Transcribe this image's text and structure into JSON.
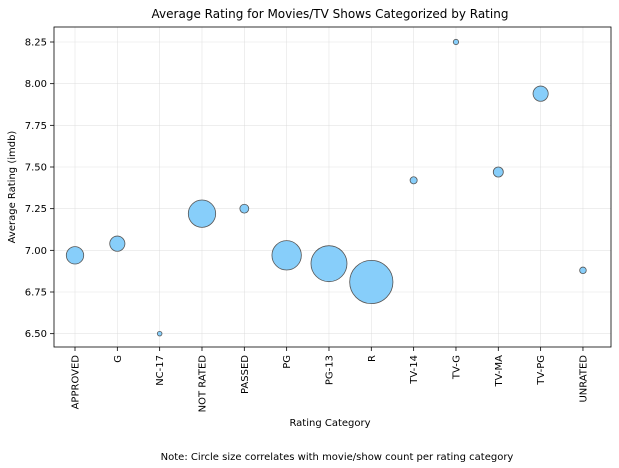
{
  "chart_data": {
    "type": "scatter",
    "title": "Average Rating for Movies/TV Shows Categorized by Rating",
    "xlabel": "Rating Category",
    "ylabel": "Average Rating (imdb)",
    "note": "Note: Circle size correlates with movie/show count per rating category",
    "categories": [
      "APPROVED",
      "G",
      "NC-17",
      "NOT RATED",
      "PASSED",
      "PG",
      "PG-13",
      "R",
      "TV-14",
      "TV-G",
      "TV-MA",
      "TV-PG",
      "UNRATED"
    ],
    "values": [
      6.97,
      7.04,
      6.5,
      7.22,
      7.25,
      6.97,
      6.92,
      6.81,
      7.42,
      8.25,
      7.47,
      7.94,
      6.88
    ],
    "size_values": [
      210,
      160,
      15,
      520,
      55,
      600,
      900,
      1300,
      35,
      20,
      70,
      160,
      30
    ],
    "ylim": [
      6.42,
      8.34
    ],
    "yticks": [
      "6.50",
      "6.75",
      "7.00",
      "7.25",
      "7.50",
      "7.75",
      "8.00",
      "8.25"
    ],
    "grid": true,
    "marker_color": "#87CEFA",
    "edge_color": "#555555"
  }
}
